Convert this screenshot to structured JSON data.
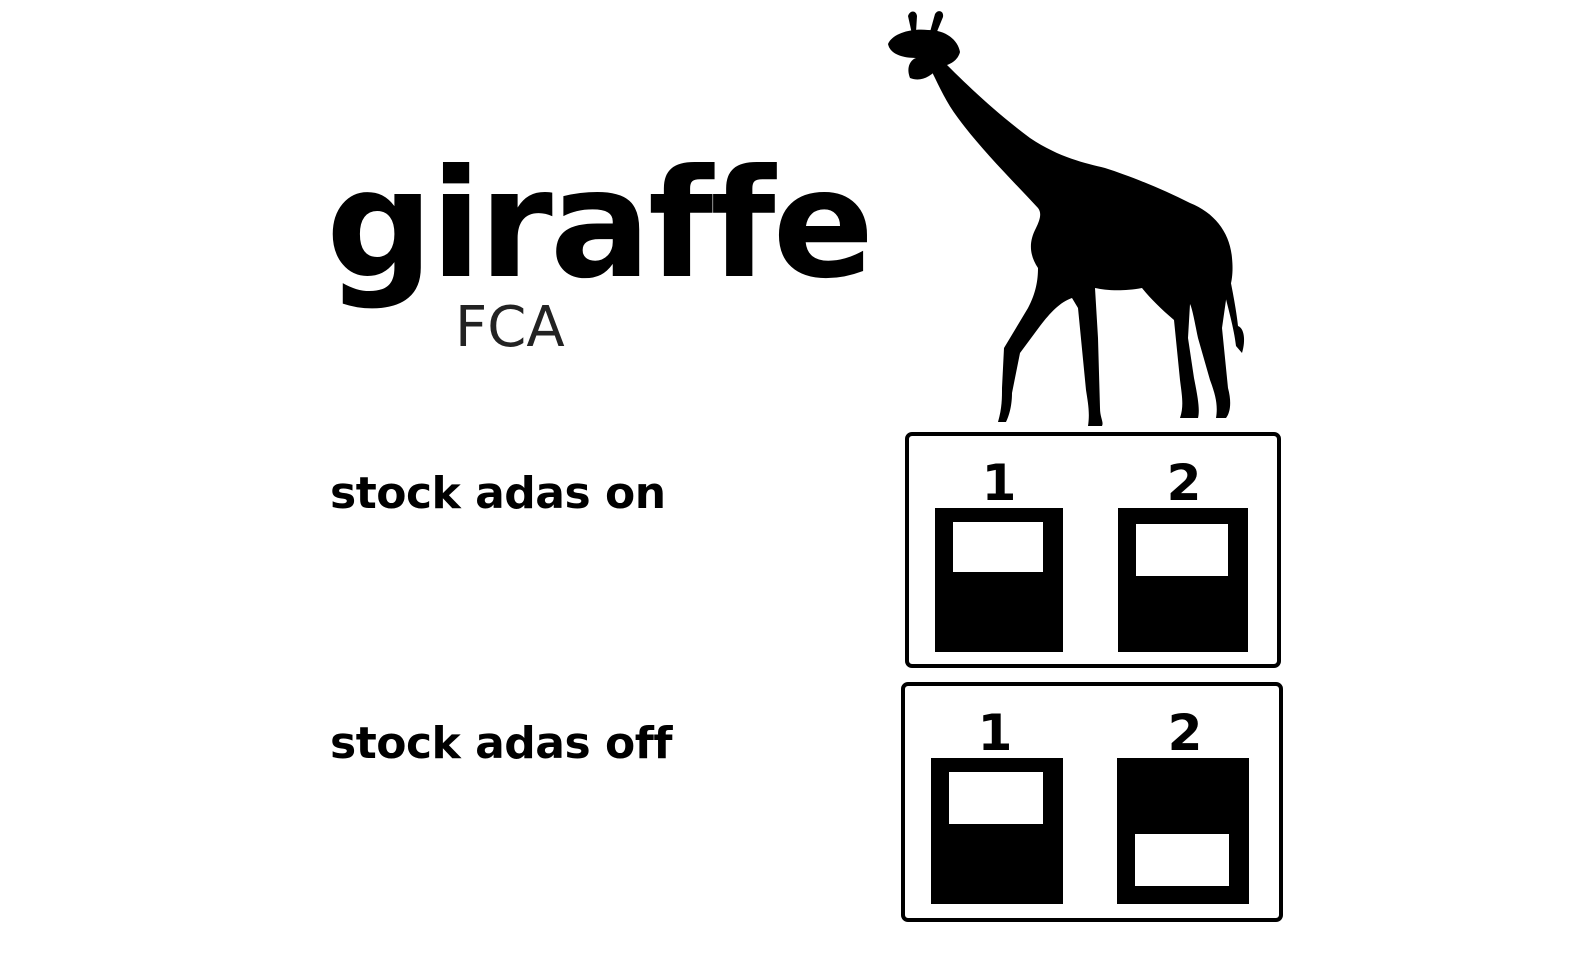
{
  "brand": {
    "title": "giraffe",
    "subtitle": "FCA",
    "logo_icon": "giraffe-silhouette-icon"
  },
  "modes": [
    {
      "label": "stock adas on",
      "switches": [
        {
          "number": "1",
          "position": "up"
        },
        {
          "number": "2",
          "position": "up"
        }
      ]
    },
    {
      "label": "stock adas off",
      "switches": [
        {
          "number": "1",
          "position": "up"
        },
        {
          "number": "2",
          "position": "down"
        }
      ]
    }
  ],
  "colors": {
    "foreground": "#000000",
    "background": "#ffffff"
  }
}
